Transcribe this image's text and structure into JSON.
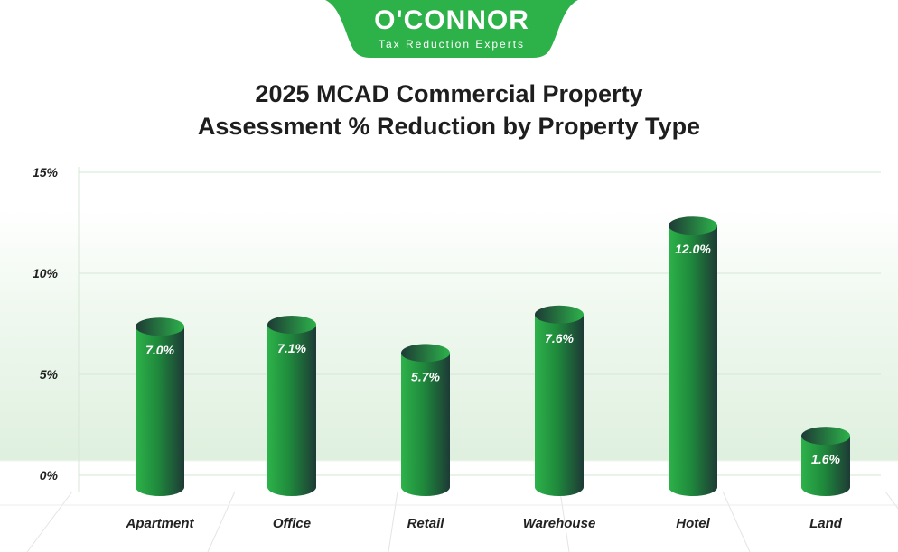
{
  "logo": {
    "name": "O'CONNOR",
    "tagline": "Tax Reduction Experts",
    "color": "#2db24a"
  },
  "title_line1": "2025 MCAD Commercial Property",
  "title_line2": "Assessment % Reduction by Property Type",
  "chart_data": {
    "type": "bar",
    "title": "2025 MCAD Commercial Property Assessment % Reduction by Property Type",
    "categories": [
      "Apartment",
      "Office",
      "Retail",
      "Warehouse",
      "Hotel",
      "Land"
    ],
    "values": [
      7.0,
      7.1,
      5.7,
      7.6,
      12.0,
      1.6
    ],
    "data_labels": [
      "7.0%",
      "7.1%",
      "5.7%",
      "7.6%",
      "12.0%",
      "1.6%"
    ],
    "yticks": [
      "0%",
      "5%",
      "10%",
      "15%"
    ],
    "ylim": [
      0,
      15
    ],
    "grid": true,
    "bar_style": "3d-cylinder",
    "colors": {
      "light": "#2db24a",
      "dark": "#1d3a35"
    }
  }
}
